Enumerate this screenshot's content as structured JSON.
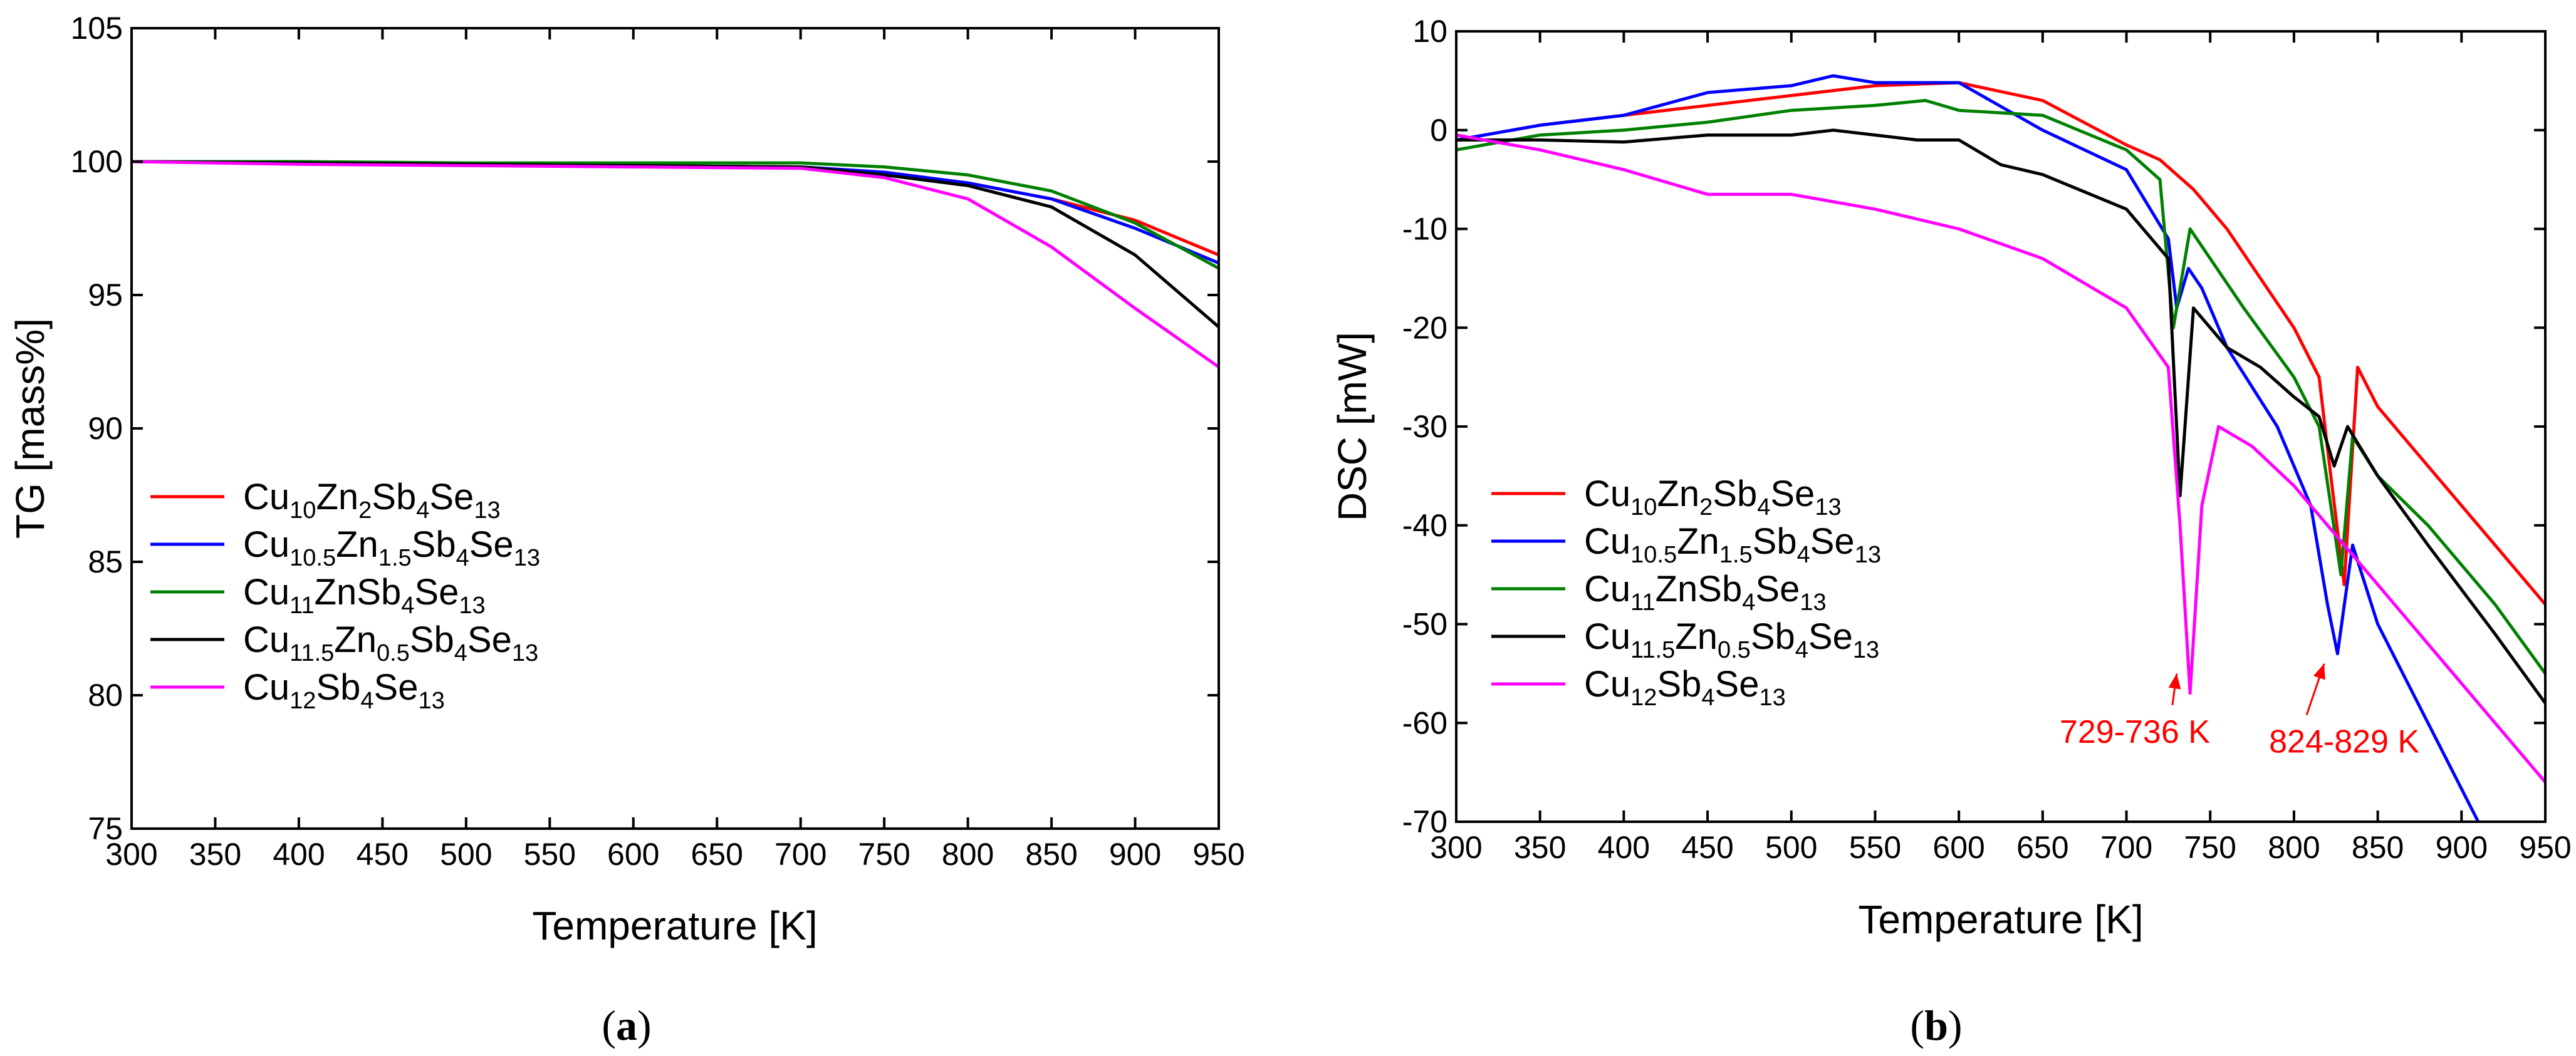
{
  "chart_data": [
    {
      "type": "line",
      "panel_label": "a",
      "xlabel": "Temperature [K]",
      "ylabel": "TG [mass%]",
      "xlim": [
        300,
        950
      ],
      "ylim": [
        75,
        105
      ],
      "xticks": [
        300,
        350,
        400,
        450,
        500,
        550,
        600,
        650,
        700,
        750,
        800,
        850,
        900,
        950
      ],
      "yticks": [
        75,
        80,
        85,
        90,
        95,
        100,
        105
      ],
      "legend_position": "lower-left",
      "series": [
        {
          "name": "Cu10Zn2Sb4Se13",
          "label": [
            "Cu",
            "10",
            "Zn",
            "2",
            "Sb",
            "4",
            "Se",
            "13"
          ],
          "color": "#ff0000",
          "x": [
            300,
            400,
            500,
            600,
            700,
            750,
            800,
            850,
            900,
            950
          ],
          "y": [
            100,
            99.95,
            99.9,
            99.85,
            99.8,
            99.6,
            99.2,
            98.6,
            97.8,
            96.5
          ]
        },
        {
          "name": "Cu10.5Zn1.5Sb4Se13",
          "label": [
            "Cu",
            "10.5",
            "Zn",
            "1.5",
            "Sb",
            "4",
            "Se",
            "13"
          ],
          "color": "#0000ff",
          "x": [
            300,
            400,
            500,
            600,
            700,
            750,
            800,
            850,
            900,
            950
          ],
          "y": [
            100,
            99.95,
            99.9,
            99.85,
            99.8,
            99.6,
            99.2,
            98.6,
            97.5,
            96.2
          ]
        },
        {
          "name": "Cu11ZnSb4Se13",
          "label": [
            "Cu",
            "11",
            "ZnSb",
            "4",
            "Se",
            "13"
          ],
          "color": "#008000",
          "x": [
            300,
            400,
            500,
            600,
            700,
            750,
            800,
            850,
            900,
            950
          ],
          "y": [
            100,
            100,
            99.95,
            99.95,
            99.95,
            99.8,
            99.5,
            98.9,
            97.7,
            96.0
          ]
        },
        {
          "name": "Cu11.5Zn0.5Sb4Se13",
          "label": [
            "Cu",
            "11.5",
            "Zn",
            "0.5",
            "Sb",
            "4",
            "Se",
            "13"
          ],
          "color": "#000000",
          "x": [
            300,
            400,
            500,
            600,
            700,
            750,
            800,
            850,
            900,
            950
          ],
          "y": [
            100,
            99.95,
            99.9,
            99.85,
            99.8,
            99.5,
            99.1,
            98.3,
            96.5,
            93.8
          ]
        },
        {
          "name": "Cu12Sb4Se13",
          "label": [
            "Cu",
            "12",
            "Sb",
            "4",
            "Se",
            "13"
          ],
          "color": "#ff00ff",
          "x": [
            300,
            400,
            500,
            600,
            700,
            750,
            800,
            850,
            900,
            950
          ],
          "y": [
            100,
            99.9,
            99.85,
            99.8,
            99.75,
            99.4,
            98.6,
            96.8,
            94.5,
            92.3
          ]
        }
      ]
    },
    {
      "type": "line",
      "panel_label": "b",
      "xlabel": "Temperature [K]",
      "ylabel": "DSC [mW]",
      "xlim": [
        300,
        950
      ],
      "ylim": [
        -70,
        10
      ],
      "xticks": [
        300,
        350,
        400,
        450,
        500,
        550,
        600,
        650,
        700,
        750,
        800,
        850,
        900,
        950
      ],
      "yticks": [
        -70,
        -60,
        -50,
        -40,
        -30,
        -20,
        -10,
        0,
        10
      ],
      "legend_position": "lower-left",
      "annotations": [
        {
          "text": "729-736 K",
          "x": 705,
          "y": -62,
          "target_x": 730,
          "target_y": -55
        },
        {
          "text": "824-829 K",
          "x": 830,
          "y": -63,
          "target_x": 818,
          "target_y": -54
        }
      ],
      "series": [
        {
          "name": "Cu10Zn2Sb4Se13",
          "label": [
            "Cu",
            "10",
            "Zn",
            "2",
            "Sb",
            "4",
            "Se",
            "13"
          ],
          "color": "#ff0000",
          "x": [
            300,
            350,
            400,
            450,
            500,
            550,
            600,
            650,
            700,
            720,
            740,
            760,
            780,
            800,
            815,
            822,
            830,
            838,
            850,
            880,
            920,
            950
          ],
          "y": [
            -1,
            0.5,
            1.5,
            2.5,
            3.5,
            4.5,
            4.8,
            3,
            -1.5,
            -3,
            -6,
            -10,
            -15,
            -20,
            -25,
            -35,
            -46,
            -24,
            -28,
            -34,
            -42,
            -48
          ]
        },
        {
          "name": "Cu10.5Zn1.5Sb4Se13",
          "label": [
            "Cu",
            "10.5",
            "Zn",
            "1.5",
            "Sb",
            "4",
            "Se",
            "13"
          ],
          "color": "#0000ff",
          "x": [
            300,
            350,
            400,
            450,
            500,
            525,
            550,
            600,
            650,
            700,
            725,
            730,
            737,
            745,
            760,
            790,
            810,
            820,
            826,
            835,
            850,
            880,
            910
          ],
          "y": [
            -1,
            0.5,
            1.5,
            3.8,
            4.5,
            5.5,
            4.8,
            4.8,
            0,
            -4,
            -11,
            -18,
            -14,
            -16,
            -22,
            -30,
            -38,
            -48,
            -53,
            -42,
            -50,
            -60,
            -70
          ]
        },
        {
          "name": "Cu11ZnSb4Se13",
          "label": [
            "Cu",
            "11",
            "ZnSb",
            "4",
            "Se",
            "13"
          ],
          "color": "#008000",
          "x": [
            300,
            350,
            400,
            450,
            500,
            550,
            580,
            600,
            650,
            700,
            720,
            728,
            738,
            750,
            770,
            800,
            815,
            822,
            828,
            835,
            850,
            880,
            920,
            950
          ],
          "y": [
            -2,
            -0.5,
            0,
            0.8,
            2,
            2.5,
            3,
            2,
            1.5,
            -2,
            -5,
            -20,
            -10,
            -13,
            -18,
            -25,
            -30,
            -38,
            -45,
            -31,
            -35,
            -40,
            -48,
            -55
          ]
        },
        {
          "name": "Cu11.5Zn0.5Sb4Se13",
          "label": [
            "Cu",
            "11.5",
            "Zn",
            "0.5",
            "Sb",
            "4",
            "Se",
            "13"
          ],
          "color": "#000000",
          "x": [
            300,
            350,
            400,
            450,
            500,
            525,
            550,
            575,
            600,
            625,
            650,
            700,
            725,
            732,
            740,
            760,
            780,
            800,
            815,
            824,
            832,
            850,
            880,
            920,
            950
          ],
          "y": [
            -1,
            -1,
            -1.2,
            -0.5,
            -0.5,
            0,
            -0.5,
            -1,
            -1,
            -3.5,
            -4.5,
            -8,
            -13,
            -37,
            -18,
            -22,
            -24,
            -27,
            -29,
            -34,
            -30,
            -35,
            -42,
            -51,
            -58
          ]
        },
        {
          "name": "Cu12Sb4Se13",
          "label": [
            "Cu",
            "12",
            "Sb",
            "4",
            "Se",
            "13"
          ],
          "color": "#ff00ff",
          "x": [
            300,
            350,
            400,
            450,
            500,
            550,
            600,
            650,
            700,
            725,
            732,
            738,
            745,
            755,
            775,
            800,
            825,
            850,
            880,
            920,
            950
          ],
          "y": [
            -0.5,
            -2,
            -4,
            -6.5,
            -6.5,
            -8,
            -10,
            -13,
            -18,
            -24,
            -40,
            -57,
            -38,
            -30,
            -32,
            -36,
            -41,
            -46,
            -52,
            -60,
            -66
          ]
        }
      ]
    }
  ]
}
